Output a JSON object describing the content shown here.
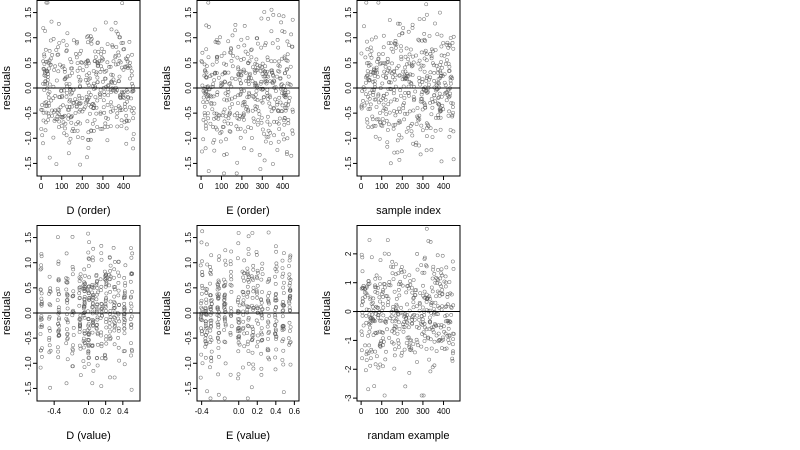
{
  "chart_data": [
    {
      "type": "scatter",
      "xlabel": "D (order)",
      "ylabel": "residuals",
      "xlim": [
        -20,
        480
      ],
      "ylim": [
        -1.75,
        1.75
      ],
      "xticks": [
        0,
        100,
        200,
        300,
        400
      ],
      "yticks": [
        -1.5,
        -1.0,
        -0.5,
        0.0,
        0.5,
        1.0,
        1.5
      ],
      "yticklabels": [
        "-1.5",
        "-1.0",
        "-0.5",
        "0.0",
        "0.5",
        "1.0",
        "1.5"
      ],
      "hline": 0,
      "n_points": 450,
      "pattern": "order",
      "x_range": [
        0,
        450
      ],
      "y_sd": 0.6,
      "seed": 11,
      "grid": false
    },
    {
      "type": "scatter",
      "xlabel": "E (order)",
      "ylabel": "residuals",
      "xlim": [
        -20,
        480
      ],
      "ylim": [
        -1.75,
        1.75
      ],
      "xticks": [
        0,
        100,
        200,
        300,
        400
      ],
      "yticks": [
        -1.5,
        -1.0,
        -0.5,
        0.0,
        0.5,
        1.0,
        1.5
      ],
      "yticklabels": [
        "-1.5",
        "-1.0",
        "-0.5",
        "0.0",
        "0.5",
        "1.0",
        "1.5"
      ],
      "hline": 0,
      "n_points": 450,
      "pattern": "order",
      "x_range": [
        0,
        450
      ],
      "y_sd": 0.6,
      "seed": 23,
      "grid": false
    },
    {
      "type": "scatter",
      "xlabel": "sample index",
      "ylabel": "residuals",
      "xlim": [
        -20,
        480
      ],
      "ylim": [
        -1.75,
        1.75
      ],
      "xticks": [
        0,
        100,
        200,
        300,
        400
      ],
      "yticks": [
        -1.5,
        -1.0,
        -0.5,
        0.0,
        0.5,
        1.0,
        1.5
      ],
      "yticklabels": [
        "-1.5",
        "-1.0",
        "-0.5",
        "0.0",
        "0.5",
        "1.0",
        "1.5"
      ],
      "hline": 0,
      "n_points": 450,
      "pattern": "order",
      "x_range": [
        0,
        450
      ],
      "y_sd": 0.6,
      "seed": 37,
      "grid": false
    },
    {
      "type": "scatter",
      "xlabel": "D (value)",
      "ylabel": "residuals",
      "xlim": [
        -0.6,
        0.6
      ],
      "ylim": [
        -1.75,
        1.75
      ],
      "xticks": [
        -0.4,
        0.0,
        0.2,
        0.4
      ],
      "xticklabels": [
        "-0.4",
        "0.0",
        "0.2",
        "0.4"
      ],
      "yticks": [
        -1.5,
        -1.0,
        -0.5,
        0.0,
        0.5,
        1.0,
        1.5
      ],
      "yticklabels": [
        "-1.5",
        "-1.0",
        "-0.5",
        "0.0",
        "0.5",
        "1.0",
        "1.5"
      ],
      "hline": 0,
      "n_points": 450,
      "pattern": "discrete",
      "x_levels": [
        -0.55,
        -0.45,
        -0.35,
        -0.25,
        -0.18,
        -0.1,
        -0.05,
        0.0,
        0.05,
        0.1,
        0.15,
        0.2,
        0.25,
        0.3,
        0.35,
        0.42,
        0.5
      ],
      "y_sd": 0.6,
      "seed": 51,
      "grid": false
    },
    {
      "type": "scatter",
      "xlabel": "E (value)",
      "ylabel": "residuals",
      "xlim": [
        -0.45,
        0.65
      ],
      "ylim": [
        -1.75,
        1.75
      ],
      "xticks": [
        -0.4,
        0.0,
        0.2,
        0.4,
        0.6
      ],
      "xticklabels": [
        "-0.4",
        "0.0",
        "0.2",
        "0.4",
        "0.6"
      ],
      "yticks": [
        -1.5,
        -1.0,
        -0.5,
        0.0,
        0.5,
        1.0,
        1.5
      ],
      "yticklabels": [
        "-1.5",
        "-1.0",
        "-0.5",
        "0.0",
        "0.5",
        "1.0",
        "1.5"
      ],
      "hline": 0,
      "n_points": 450,
      "pattern": "discrete",
      "x_levels": [
        -0.4,
        -0.35,
        -0.3,
        -0.22,
        -0.15,
        -0.08,
        0.0,
        0.05,
        0.1,
        0.15,
        0.2,
        0.25,
        0.32,
        0.4,
        0.48,
        0.55
      ],
      "y_sd": 0.6,
      "seed": 67,
      "grid": false
    },
    {
      "type": "scatter",
      "xlabel": "randam example",
      "ylabel": "residuals",
      "xlim": [
        -20,
        480
      ],
      "ylim": [
        -3.1,
        3.0
      ],
      "xticks": [
        0,
        100,
        200,
        300,
        400
      ],
      "yticks": [
        -3,
        -2,
        -1,
        0,
        1,
        2
      ],
      "yticklabels": [
        "-3",
        "-2",
        "-1",
        "0",
        "1",
        "2"
      ],
      "hline": 0,
      "n_points": 450,
      "pattern": "order",
      "x_range": [
        0,
        450
      ],
      "y_sd": 1.0,
      "seed": 83,
      "grid": false
    }
  ]
}
